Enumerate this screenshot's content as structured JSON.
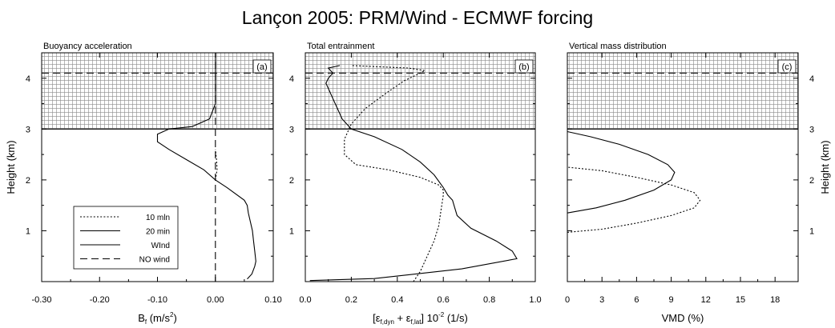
{
  "figure": {
    "title": "Lançon 2005: PRM/Wind - ECMWF forcing"
  },
  "chart_data": [
    {
      "type": "line",
      "panel_title": "Buoyancy acceleration",
      "panel_tag": "(a)",
      "xlabel": "B",
      "xlabel_sub": "f",
      "xlabel_unit": " (m/s",
      "xlabel_sup": "2",
      "xlabel_close": ")",
      "ylabel": "Height (km)",
      "xlim": [
        -0.3,
        0.1
      ],
      "ylim": [
        0,
        4.5
      ],
      "xticks": [
        -0.3,
        -0.2,
        -0.1,
        0.0,
        0.1
      ],
      "xtick_labels": [
        "-0.30",
        "-0.20",
        "-0.10",
        "0.00",
        "0.10"
      ],
      "yticks": [
        1,
        2,
        3,
        4
      ],
      "ytick_labels": [
        "1",
        "2",
        "3",
        "4"
      ],
      "hatched_above": 3.0,
      "dashed_hline": 4.1,
      "legend": {
        "placement": "lower-left",
        "entries": [
          {
            "label": "10 mln",
            "style": "dotted"
          },
          {
            "label": "20 min",
            "style": "solid"
          },
          {
            "label": "WInd",
            "style": "solid"
          },
          {
            "label": "NO wind",
            "style": "dashed"
          }
        ]
      },
      "series": [
        {
          "style": "solid",
          "x": [
            0.055,
            0.063,
            0.068,
            0.07,
            0.068,
            0.066,
            0.064,
            0.06,
            0.057,
            0.055,
            0.05,
            0.02,
            0.0,
            -0.02,
            -0.05,
            -0.08,
            -0.1,
            -0.1,
            -0.08,
            -0.04,
            -0.01,
            0.0,
            0.0,
            0.0,
            0.0
          ],
          "y": [
            0.05,
            0.15,
            0.3,
            0.4,
            0.6,
            0.8,
            1.0,
            1.2,
            1.35,
            1.5,
            1.6,
            1.85,
            2.0,
            2.2,
            2.4,
            2.6,
            2.75,
            2.9,
            3.0,
            3.05,
            3.2,
            3.5,
            3.8,
            4.1,
            4.5
          ]
        },
        {
          "style": "dotted",
          "x": [
            0.0,
            0.003,
            0.002,
            0.0
          ],
          "y": [
            2.0,
            2.2,
            2.4,
            2.6
          ]
        },
        {
          "style": "dashed",
          "x": [
            0.0,
            0.0
          ],
          "y": [
            0.0,
            4.5
          ]
        }
      ]
    },
    {
      "type": "line",
      "panel_title": "Total entrainment",
      "panel_tag": "(b)",
      "xlabel": "[ε",
      "xlabel_sub1": "f,dyn",
      "xlabel_mid": " + ε",
      "xlabel_sub2": "f,lat",
      "xlabel_post": "] 10",
      "xlabel_sup": "-2",
      "xlabel_unit": "  (1/s)",
      "xlim": [
        0.0,
        1.0
      ],
      "ylim": [
        0,
        4.5
      ],
      "xticks": [
        0.0,
        0.2,
        0.4,
        0.6,
        0.8,
        1.0
      ],
      "xtick_labels": [
        "0.0",
        "0.2",
        "0.4",
        "0.6",
        "0.8",
        "1.0"
      ],
      "yticks": [
        1,
        2,
        3,
        4
      ],
      "ytick_labels": [
        "1",
        "2",
        "3",
        "4"
      ],
      "hatched_above": 3.0,
      "dashed_hline": 4.1,
      "series": [
        {
          "style": "solid",
          "x": [
            0.02,
            0.3,
            0.68,
            0.92,
            0.9,
            0.83,
            0.72,
            0.66,
            0.65,
            0.64,
            0.62,
            0.6,
            0.56,
            0.5,
            0.42,
            0.3,
            0.2,
            0.16,
            0.14,
            0.12,
            0.1,
            0.09,
            0.1,
            0.12,
            0.1,
            0.15
          ],
          "y": [
            0.02,
            0.06,
            0.25,
            0.45,
            0.6,
            0.8,
            1.05,
            1.3,
            1.45,
            1.6,
            1.7,
            1.85,
            2.1,
            2.35,
            2.6,
            2.85,
            3.0,
            3.2,
            3.4,
            3.6,
            3.8,
            3.9,
            4.0,
            4.1,
            4.2,
            4.25
          ]
        },
        {
          "style": "dotted",
          "x": [
            0.47,
            0.5,
            0.53,
            0.56,
            0.58,
            0.59,
            0.6,
            0.6,
            0.58,
            0.5,
            0.36,
            0.22,
            0.17,
            0.17,
            0.2,
            0.26,
            0.35,
            0.43,
            0.5,
            0.52,
            0.45,
            0.2
          ],
          "y": [
            0.0,
            0.2,
            0.5,
            0.8,
            1.1,
            1.4,
            1.7,
            1.8,
            1.9,
            2.05,
            2.2,
            2.3,
            2.5,
            2.8,
            3.1,
            3.4,
            3.7,
            3.95,
            4.1,
            4.15,
            4.2,
            4.25
          ]
        }
      ]
    },
    {
      "type": "line",
      "panel_title": "Vertical mass distribution",
      "panel_tag": "(c)",
      "xlabel": "VMD (%)",
      "ylabel": "Height (km)",
      "xlim": [
        0,
        20
      ],
      "ylim": [
        0,
        4.5
      ],
      "xticks": [
        0,
        3,
        6,
        9,
        12,
        15,
        18
      ],
      "xtick_labels": [
        "0",
        "3",
        "6",
        "9",
        "12",
        "15",
        "18"
      ],
      "yticks": [
        1,
        2,
        3,
        4
      ],
      "ytick_labels": [
        "1",
        "2",
        "3",
        "4"
      ],
      "hatched_above": 3.0,
      "dashed_hline": 4.1,
      "series": [
        {
          "style": "solid",
          "x": [
            0.0,
            2.5,
            5.0,
            7.5,
            9.0,
            9.3,
            8.7,
            7.0,
            4.5,
            2.0,
            0.0
          ],
          "y": [
            1.35,
            1.45,
            1.6,
            1.8,
            2.0,
            2.15,
            2.3,
            2.5,
            2.7,
            2.85,
            2.95
          ]
        },
        {
          "style": "dotted",
          "x": [
            0.0,
            3.0,
            6.0,
            9.0,
            11.0,
            11.5,
            11.0,
            9.0,
            6.0,
            3.0,
            0.0
          ],
          "y": [
            0.97,
            1.03,
            1.15,
            1.3,
            1.45,
            1.6,
            1.75,
            1.9,
            2.05,
            2.18,
            2.25
          ]
        }
      ]
    }
  ]
}
